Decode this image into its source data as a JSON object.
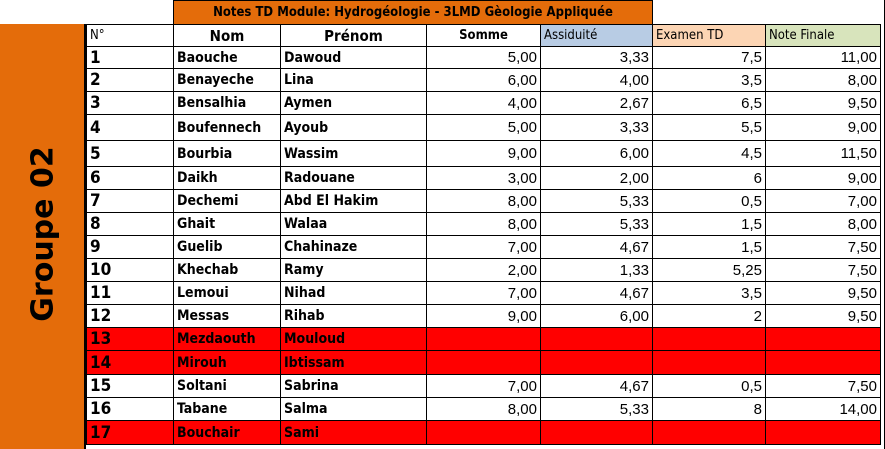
{
  "title": "Notes TD Module: Hydrogéologie - 3LMD Gèologie Appliquée",
  "group_label": "Groupe 02",
  "headers": {
    "num": "N°",
    "nom": "Nom",
    "prenom": "Prénom",
    "somme": "Somme",
    "assiduite": "Assiduité",
    "examen": "Examen TD",
    "note": "Note Finale"
  },
  "colors": {
    "orange": "#e46c0a",
    "absent_red": "#ff0000",
    "assiduite": "#b8cce4",
    "examen": "#fcd5b4",
    "note": "#d8e4bc"
  },
  "rows": [
    {
      "n": "1",
      "nom": "Baouche",
      "prenom": "Dawoud",
      "somme": "5,00",
      "assiduite": "3,33",
      "examen": "7,5",
      "note": "11,00"
    },
    {
      "n": "2",
      "nom": "Benayeche",
      "prenom": "Lina",
      "somme": "6,00",
      "assiduite": "4,00",
      "examen": "3,5",
      "note": "8,00"
    },
    {
      "n": "3",
      "nom": "Bensalhia",
      "prenom": "Aymen",
      "somme": "4,00",
      "assiduite": "2,67",
      "examen": "6,5",
      "note": "9,50"
    },
    {
      "n": "4",
      "nom": "Boufennech",
      "prenom": "Ayoub",
      "somme": "5,00",
      "assiduite": "3,33",
      "examen": "5,5",
      "note": "9,00"
    },
    {
      "n": "5",
      "nom": "Bourbia",
      "prenom": "Wassim",
      "somme": "9,00",
      "assiduite": "6,00",
      "examen": "4,5",
      "note": "11,50"
    },
    {
      "n": "6",
      "nom": "Daikh",
      "prenom": "Radouane",
      "somme": "3,00",
      "assiduite": "2,00",
      "examen": "6",
      "note": "9,00"
    },
    {
      "n": "7",
      "nom": "Dechemi",
      "prenom": "Abd El Hakim",
      "somme": "8,00",
      "assiduite": "5,33",
      "examen": "0,5",
      "note": "7,00"
    },
    {
      "n": "8",
      "nom": "Ghait",
      "prenom": "Walaa",
      "somme": "8,00",
      "assiduite": "5,33",
      "examen": "1,5",
      "note": "8,00"
    },
    {
      "n": "9",
      "nom": "Guelib",
      "prenom": "Chahinaze",
      "somme": "7,00",
      "assiduite": "4,67",
      "examen": "1,5",
      "note": "7,50"
    },
    {
      "n": "10",
      "nom": "Khechab",
      "prenom": "Ramy",
      "somme": "2,00",
      "assiduite": "1,33",
      "examen": "5,25",
      "note": "7,50"
    },
    {
      "n": "11",
      "nom": "Lemoui",
      "prenom": "Nihad",
      "somme": "7,00",
      "assiduite": "4,67",
      "examen": "3,5",
      "note": "9,50"
    },
    {
      "n": "12",
      "nom": "Messas",
      "prenom": "Rihab",
      "somme": "9,00",
      "assiduite": "6,00",
      "examen": "2",
      "note": "9,50"
    },
    {
      "n": "13",
      "nom": "Mezdaouth",
      "prenom": "Mouloud",
      "somme": "",
      "assiduite": "",
      "examen": "",
      "note": "",
      "absent": true
    },
    {
      "n": "14",
      "nom": "Mirouh",
      "prenom": "Ibtissam",
      "somme": "",
      "assiduite": "",
      "examen": "",
      "note": "",
      "absent": true
    },
    {
      "n": "15",
      "nom": "Soltani",
      "prenom": "Sabrina",
      "somme": "7,00",
      "assiduite": "4,67",
      "examen": "0,5",
      "note": "7,50"
    },
    {
      "n": "16",
      "nom": "Tabane",
      "prenom": "Salma",
      "somme": "8,00",
      "assiduite": "5,33",
      "examen": "8",
      "note": "14,00"
    },
    {
      "n": "17",
      "nom": "Bouchair",
      "prenom": "Sami",
      "somme": "",
      "assiduite": "",
      "examen": "",
      "note": "",
      "absent": true
    }
  ]
}
